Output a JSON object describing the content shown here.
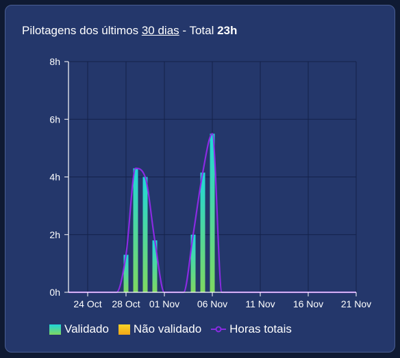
{
  "header": {
    "title_prefix": "Pilotagens dos últimos ",
    "title_period": "30 dias",
    "title_separator": " - Total ",
    "title_total": "23h"
  },
  "legend": {
    "validated": "Validado",
    "not_validated": "Não validado",
    "total_hours": "Horas totais"
  },
  "colors": {
    "card_bg": "#24376b",
    "grid": "#13214a",
    "line": "#8a2be2",
    "validated_top": "#1fd6d9",
    "validated_bottom": "#7fd860",
    "not_validated": "#f5c21e",
    "text": "#ffffff"
  },
  "chart_data": {
    "type": "bar",
    "x_unit": "day",
    "x_start": "2023-10-22",
    "x_end": "2023-11-21",
    "x_ticks": [
      {
        "date": "2023-10-24",
        "label": "24 Oct"
      },
      {
        "date": "2023-10-28",
        "label": "28 Oct"
      },
      {
        "date": "2023-11-01",
        "label": "01 Nov"
      },
      {
        "date": "2023-11-06",
        "label": "06 Nov"
      },
      {
        "date": "2023-11-11",
        "label": "11 Nov"
      },
      {
        "date": "2023-11-16",
        "label": "16 Nov"
      },
      {
        "date": "2023-11-21",
        "label": "21 Nov"
      }
    ],
    "ylim": [
      0,
      8
    ],
    "y_ticks": [
      {
        "value": 0,
        "label": "0h"
      },
      {
        "value": 2,
        "label": "2h"
      },
      {
        "value": 4,
        "label": "4h"
      },
      {
        "value": 6,
        "label": "6h"
      },
      {
        "value": 8,
        "label": "8h"
      }
    ],
    "series": [
      {
        "name": "Validado",
        "type": "bar",
        "points": [
          {
            "date": "2023-10-28",
            "value": 1.3
          },
          {
            "date": "2023-10-29",
            "value": 4.3
          },
          {
            "date": "2023-10-30",
            "value": 4.0
          },
          {
            "date": "2023-10-31",
            "value": 1.8
          },
          {
            "date": "2023-11-04",
            "value": 2.0
          },
          {
            "date": "2023-11-05",
            "value": 4.15
          },
          {
            "date": "2023-11-06",
            "value": 5.5
          }
        ]
      },
      {
        "name": "Não validado",
        "type": "bar",
        "points": []
      },
      {
        "name": "Horas totais",
        "type": "line",
        "points": [
          {
            "date": "2023-10-22",
            "value": 0
          },
          {
            "date": "2023-10-27",
            "value": 0
          },
          {
            "date": "2023-10-28",
            "value": 1.3
          },
          {
            "date": "2023-10-29",
            "value": 4.3
          },
          {
            "date": "2023-10-30",
            "value": 4.0
          },
          {
            "date": "2023-10-31",
            "value": 1.8
          },
          {
            "date": "2023-11-01",
            "value": 0
          },
          {
            "date": "2023-11-03",
            "value": 0
          },
          {
            "date": "2023-11-04",
            "value": 2.0
          },
          {
            "date": "2023-11-05",
            "value": 4.15
          },
          {
            "date": "2023-11-06",
            "value": 5.5
          },
          {
            "date": "2023-11-07",
            "value": 0
          },
          {
            "date": "2023-11-21",
            "value": 0
          }
        ]
      }
    ],
    "grid": true,
    "legend_position": "bottom-left"
  }
}
